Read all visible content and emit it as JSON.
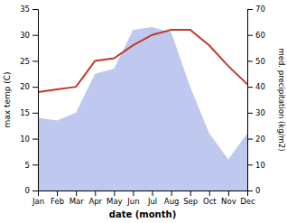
{
  "chart_data": {
    "type": "line",
    "xlabel": "date (month)",
    "ylabel": "max temp (C)",
    "y2label": "med. precipitation (kg/m2)",
    "categories": [
      "Jan",
      "Feb",
      "Mar",
      "Apr",
      "May",
      "Jun",
      "Jul",
      "Aug",
      "Sep",
      "Oct",
      "Nov",
      "Dec"
    ],
    "series": [
      {
        "type": "area",
        "axis": "y2",
        "color": "#bfc8ee",
        "values": [
          28,
          27,
          30,
          45,
          47,
          62,
          63,
          61,
          40,
          22,
          12,
          22
        ]
      },
      {
        "type": "line",
        "color": "#c0392b",
        "values": [
          19,
          19.5,
          20,
          25,
          25.5,
          28,
          30,
          31,
          31,
          28,
          24,
          20.5
        ]
      }
    ],
    "ylim": [
      0,
      35
    ],
    "yticks": [
      0,
      5,
      10,
      15,
      20,
      25,
      30,
      35
    ],
    "y2lim": [
      0,
      70
    ],
    "y2ticks": [
      0,
      10,
      20,
      30,
      40,
      50,
      60,
      70
    ],
    "grid": false
  }
}
